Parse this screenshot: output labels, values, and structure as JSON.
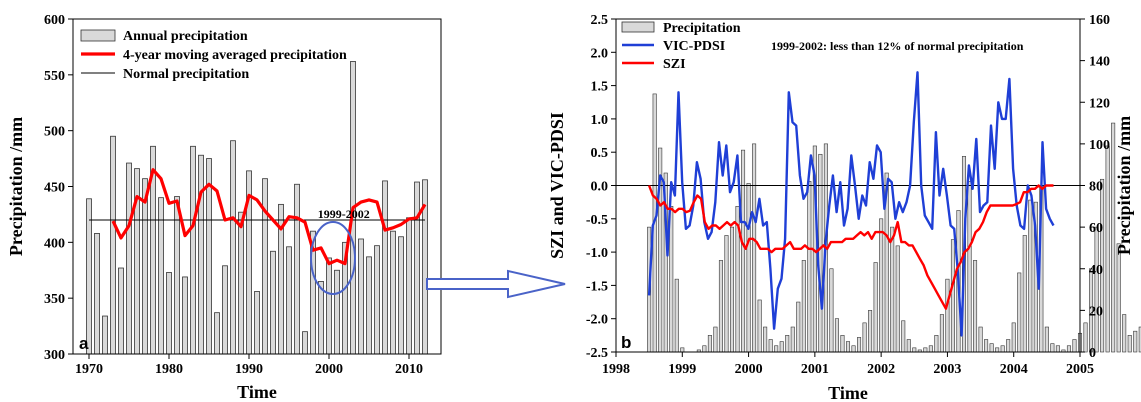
{
  "chart_data": [
    {
      "type": "bar",
      "panel_label": "a",
      "xlabel": "Time",
      "ylabel": "Precipitation /mm",
      "xlim": [
        1968,
        2014
      ],
      "ylim": [
        300,
        600
      ],
      "xticks": [
        "1970",
        "1980",
        "1990",
        "2000",
        "2010"
      ],
      "yticks": [
        "300",
        "350",
        "400",
        "450",
        "500",
        "550",
        "600"
      ],
      "legend": [
        "Annual precipitation",
        "4-year moving averaged precipitation",
        "Normal precipitation"
      ],
      "legend_position": "top-left",
      "annotation": "1999-2002",
      "normal_precipitation": 420,
      "x": [
        1970,
        1971,
        1972,
        1973,
        1974,
        1975,
        1976,
        1977,
        1978,
        1979,
        1980,
        1981,
        1982,
        1983,
        1984,
        1985,
        1986,
        1987,
        1988,
        1989,
        1990,
        1991,
        1992,
        1993,
        1994,
        1995,
        1996,
        1997,
        1998,
        1999,
        2000,
        2001,
        2002,
        2003,
        2004,
        2005,
        2006,
        2007,
        2008,
        2009,
        2010,
        2011,
        2012
      ],
      "annual_precipitation": [
        439,
        408,
        334,
        495,
        377,
        471,
        466,
        457,
        486,
        440,
        373,
        441,
        369,
        486,
        478,
        475,
        337,
        379,
        491,
        427,
        464,
        356,
        457,
        392,
        434,
        396,
        452,
        320,
        410,
        365,
        386,
        375,
        400,
        562,
        403,
        387,
        397,
        455,
        410,
        405,
        422,
        454,
        456
      ],
      "moving_average_x": [
        1973,
        1974,
        1975,
        1976,
        1977,
        1978,
        1979,
        1980,
        1981,
        1982,
        1983,
        1984,
        1985,
        1986,
        1987,
        1988,
        1989,
        1990,
        1991,
        1992,
        1993,
        1994,
        1995,
        1996,
        1997,
        1998,
        1999,
        2000,
        2001,
        2002,
        2003,
        2004,
        2005,
        2006,
        2007,
        2008,
        2009,
        2010,
        2011,
        2012
      ],
      "moving_average": [
        419,
        404,
        415,
        441,
        436,
        465,
        457,
        435,
        437,
        406,
        415,
        445,
        452,
        446,
        420,
        422,
        414,
        442,
        438,
        428,
        420,
        412,
        423,
        422,
        418,
        393,
        395,
        381,
        384,
        381,
        431,
        436,
        438,
        436,
        411,
        413,
        416,
        421,
        422,
        434
      ]
    },
    {
      "type": "bar",
      "panel_label": "b",
      "xlabel": "Time",
      "ylabel_left": "SZI and VIC-PDSI",
      "ylabel_right": "Precipitation /mm",
      "xlim": [
        1998,
        2005
      ],
      "ylim_left": [
        -2.5,
        2.5
      ],
      "ylim_right": [
        0,
        160
      ],
      "xticks": [
        "1998",
        "1999",
        "2000",
        "2001",
        "2002",
        "2003",
        "2004",
        "2005"
      ],
      "yticks_left": [
        "-2.5",
        "-2.0",
        "-1.5",
        "-1.0",
        "-0.5",
        "0.0",
        "0.5",
        "1.0",
        "1.5",
        "2.0",
        "2.5"
      ],
      "yticks_right": [
        "0",
        "20",
        "40",
        "60",
        "80",
        "100",
        "120",
        "140",
        "160"
      ],
      "legend": [
        "Precipitation",
        "VIC-PDSI",
        "SZI"
      ],
      "legend_position": "top-left",
      "annotation": "1999-2002: less than 12% of normal precipitation",
      "time_start": 1998.5,
      "time_step": 0.0833333,
      "monthly_precipitation": [
        60,
        124,
        98,
        86,
        70,
        35,
        2,
        0,
        0,
        1,
        3,
        8,
        12,
        44,
        56,
        60,
        70,
        97,
        81,
        100,
        25,
        12,
        6,
        3,
        5,
        8,
        12,
        24,
        44,
        82,
        99,
        95,
        100,
        40,
        16,
        8,
        5,
        3,
        7,
        14,
        20,
        43,
        64,
        86,
        60,
        51,
        15,
        6,
        2,
        1,
        2,
        3,
        8,
        18,
        35,
        54,
        68,
        94,
        82,
        44,
        12,
        6,
        4,
        2,
        3,
        6,
        14,
        38,
        56,
        73,
        72,
        80,
        12,
        4,
        3,
        1,
        3,
        6,
        9,
        14,
        40,
        60,
        83,
        99,
        110,
        52,
        18,
        8,
        10,
        12,
        17,
        22,
        30,
        48,
        60,
        70,
        80,
        55
      ],
      "vic_pdsi": [
        -1.65,
        -0.6,
        -0.45,
        0.15,
        0.05,
        -1.05,
        0.05,
        -0.15,
        1.4,
        0.05,
        -0.65,
        -0.6,
        -0.3,
        0.35,
        0.1,
        -0.55,
        -0.8,
        -0.7,
        -0.25,
        0.65,
        0.15,
        0.6,
        -0.1,
        0.05,
        0.45,
        -0.55,
        -0.55,
        -0.65,
        -0.4,
        -0.55,
        -0.2,
        -0.6,
        -0.55,
        -1.25,
        -2.15,
        -1.55,
        -1.4,
        -0.8,
        1.4,
        0.95,
        0.9,
        0.15,
        -0.2,
        -0.1,
        0.45,
        0.15,
        -1.2,
        -1.85,
        -0.85,
        -0.3,
        0.15,
        -0.4,
        0.05,
        -0.6,
        -0.35,
        0.45,
        0.0,
        -0.5,
        -0.15,
        -0.3,
        0.35,
        0.1,
        0.6,
        0.5,
        -0.35,
        0.1,
        0.05,
        -0.5,
        -0.25,
        -0.4,
        -0.25,
        0.0,
        0.95,
        1.7,
        0.0,
        -0.45,
        -0.55,
        -0.65,
        0.8,
        -0.15,
        0.25,
        -0.15,
        -0.6,
        -0.65,
        -1.3,
        -2.25,
        -0.5,
        0.3,
        -0.05,
        0.7,
        -0.4,
        -0.3,
        -0.25,
        0.9,
        0.25,
        1.25,
        1.0,
        1.0,
        1.6,
        0.25,
        -0.3,
        -0.6,
        -0.65,
        0.0,
        -0.15,
        -0.6,
        -1.55,
        0.65,
        -0.35,
        -0.5,
        -0.6
      ],
      "szi": [
        0.0,
        -0.15,
        -0.2,
        -0.3,
        -0.25,
        -0.35,
        -0.35,
        -0.4,
        -0.35,
        -0.35,
        -0.4,
        -0.38,
        -0.25,
        -0.15,
        -0.2,
        -0.55,
        -0.65,
        -0.6,
        -0.6,
        -0.65,
        -0.6,
        -0.55,
        -0.6,
        -0.55,
        -0.6,
        -0.85,
        -0.95,
        -0.8,
        -0.8,
        -0.85,
        -0.95,
        -0.95,
        -0.95,
        -1.0,
        -0.95,
        -0.95,
        -0.95,
        -0.9,
        -0.85,
        -0.95,
        -0.95,
        -0.95,
        -0.9,
        -0.95,
        -0.95,
        -1.0,
        -0.95,
        -0.9,
        -0.95,
        -0.85,
        -0.85,
        -0.85,
        -0.85,
        -0.8,
        -0.8,
        -0.8,
        -0.75,
        -0.7,
        -0.75,
        -0.7,
        -0.8,
        -0.7,
        -0.7,
        -0.7,
        -0.75,
        -0.85,
        -0.75,
        -0.55,
        -0.85,
        -0.85,
        -0.9,
        -0.9,
        -1.0,
        -1.1,
        -1.2,
        -1.35,
        -1.45,
        -1.55,
        -1.65,
        -1.75,
        -1.85,
        -1.65,
        -1.45,
        -1.25,
        -1.15,
        -1.0,
        -0.95,
        -0.85,
        -0.7,
        -0.65,
        -0.55,
        -0.4,
        -0.3,
        -0.3,
        -0.3,
        -0.3,
        -0.3,
        -0.3,
        -0.3,
        -0.28,
        -0.25,
        -0.1,
        -0.1,
        -0.05,
        -0.05,
        0.0,
        -0.05,
        0.0,
        0.0,
        0.0
      ]
    }
  ]
}
